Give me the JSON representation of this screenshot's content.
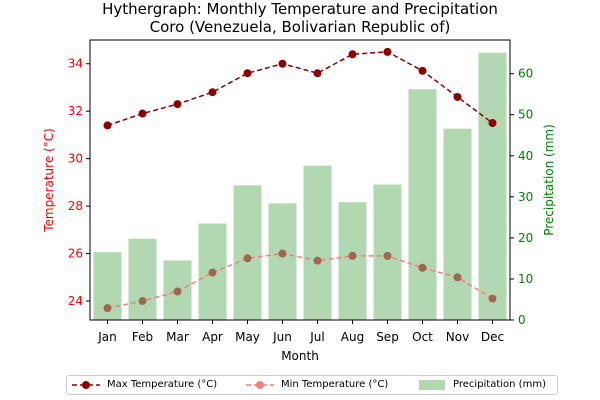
{
  "colors": {
    "max_line": "#8b0000",
    "min_line": "#f08080",
    "min_marker": "#a0664e",
    "precip_bar": "#b2d8b2",
    "temp_axis": "#ff0000",
    "precip_axis": "#008000"
  },
  "chart_data": {
    "type": "bar",
    "title": "Hythergraph: Monthly Temperature and Precipitation",
    "subtitle": "Coro (Venezuela, Bolivarian Republic of)",
    "xlabel": "Month",
    "ylabel": "Temperature (°C)",
    "y2label": "Precipitation (mm)",
    "categories": [
      "Jan",
      "Feb",
      "Mar",
      "Apr",
      "May",
      "Jun",
      "Jul",
      "Aug",
      "Sep",
      "Oct",
      "Nov",
      "Dec"
    ],
    "ylim": [
      23.2,
      35.0
    ],
    "y2lim": [
      0,
      68.2
    ],
    "yticks": [
      24,
      26,
      28,
      30,
      32,
      34
    ],
    "y2ticks": [
      0,
      10,
      20,
      30,
      40,
      50,
      60
    ],
    "grid": false,
    "legend_position": "bottom",
    "series": [
      {
        "name": "Max Temperature (°C)",
        "type": "line",
        "axis": "left",
        "values": [
          31.4,
          31.9,
          32.3,
          32.8,
          33.6,
          34.0,
          33.6,
          34.4,
          34.5,
          33.7,
          32.6,
          31.5
        ]
      },
      {
        "name": "Min Temperature (°C)",
        "type": "line",
        "axis": "left",
        "values": [
          23.7,
          24.0,
          24.4,
          25.2,
          25.8,
          26.0,
          25.7,
          25.9,
          25.9,
          25.4,
          25.0,
          24.1
        ]
      },
      {
        "name": "Precipitation (mm)",
        "type": "bar",
        "axis": "right",
        "values": [
          16.5,
          19.8,
          14.5,
          23.5,
          32.8,
          28.4,
          37.6,
          28.7,
          33.0,
          56.2,
          46.6,
          65.1
        ]
      }
    ]
  }
}
